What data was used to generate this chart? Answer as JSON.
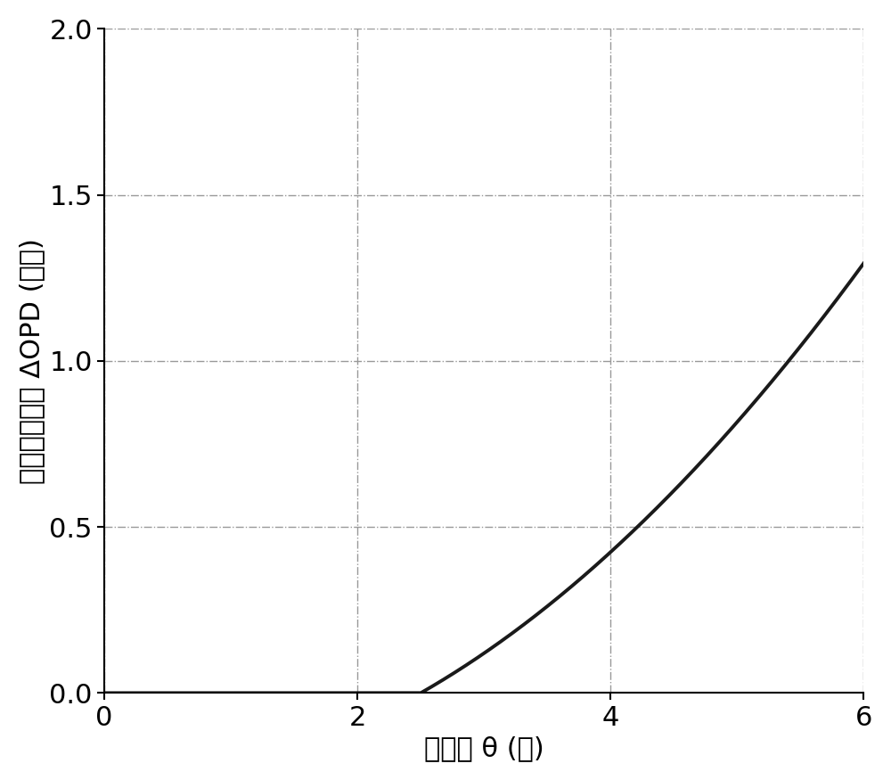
{
  "xlabel": "入射角 θ (度)",
  "ylabel": "光程差变化量 ΔOPD (波长)",
  "xlim": [
    0,
    6
  ],
  "ylim": [
    0,
    2
  ],
  "xticks": [
    0,
    2,
    4,
    6
  ],
  "yticks": [
    0,
    0.5,
    1.0,
    1.5,
    2.0
  ],
  "N": 286,
  "theta0_deg": 2.5,
  "line_color": "#1a1a1a",
  "line_width": 2.8,
  "grid_color": "#999999",
  "grid_style": "-.",
  "background_color": "#ffffff",
  "xlabel_fontsize": 22,
  "ylabel_fontsize": 22,
  "tick_fontsize": 22
}
